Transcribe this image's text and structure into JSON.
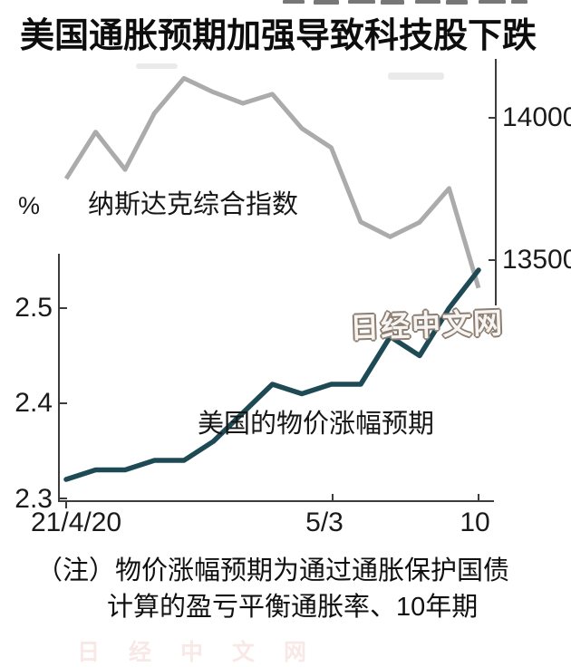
{
  "title": "美国通胀预期加强导致科技股下跌",
  "watermark_center": "日经中文网",
  "watermark_bottom": "日经中文网",
  "note": {
    "line1": "（注）物价涨幅预期为通过通胀保护国债",
    "line2": "计算的盈亏平衡通胀率、10年期"
  },
  "chart_data": {
    "type": "line",
    "title": "美国通胀预期加强导致科技股下跌",
    "x_tick_labels": [
      "21/4/20",
      "5/3",
      "10"
    ],
    "x_trading_days": [
      "2021-04-20",
      "2021-04-21",
      "2021-04-22",
      "2021-04-23",
      "2021-04-26",
      "2021-04-27",
      "2021-04-28",
      "2021-04-29",
      "2021-04-30",
      "2021-05-03",
      "2021-05-04",
      "2021-05-05",
      "2021-05-06",
      "2021-05-07",
      "2021-05-10"
    ],
    "series": [
      {
        "name": "纳斯达克综合指数",
        "axis": "right",
        "color": "#ababab",
        "values": [
          13786,
          13950,
          13818,
          14017,
          14139,
          14090,
          14051,
          14083,
          13963,
          13895,
          13634,
          13582,
          13633,
          13752,
          13402
        ]
      },
      {
        "name": "美国的物价涨幅预期",
        "axis": "left",
        "color": "#1d4a55",
        "values": [
          2.32,
          2.33,
          2.33,
          2.34,
          2.34,
          2.36,
          2.39,
          2.42,
          2.41,
          2.42,
          2.42,
          2.47,
          2.45,
          2.5,
          2.54
        ]
      }
    ],
    "left_axis": {
      "unit": "%",
      "ticks": [
        "2.5",
        "2.4",
        "2.3"
      ],
      "range": [
        2.3,
        2.56
      ]
    },
    "right_axis": {
      "ticks": [
        "14000",
        "13500"
      ],
      "range": [
        13350,
        14210
      ]
    },
    "grid": false,
    "legend_position": "inline-labels"
  }
}
